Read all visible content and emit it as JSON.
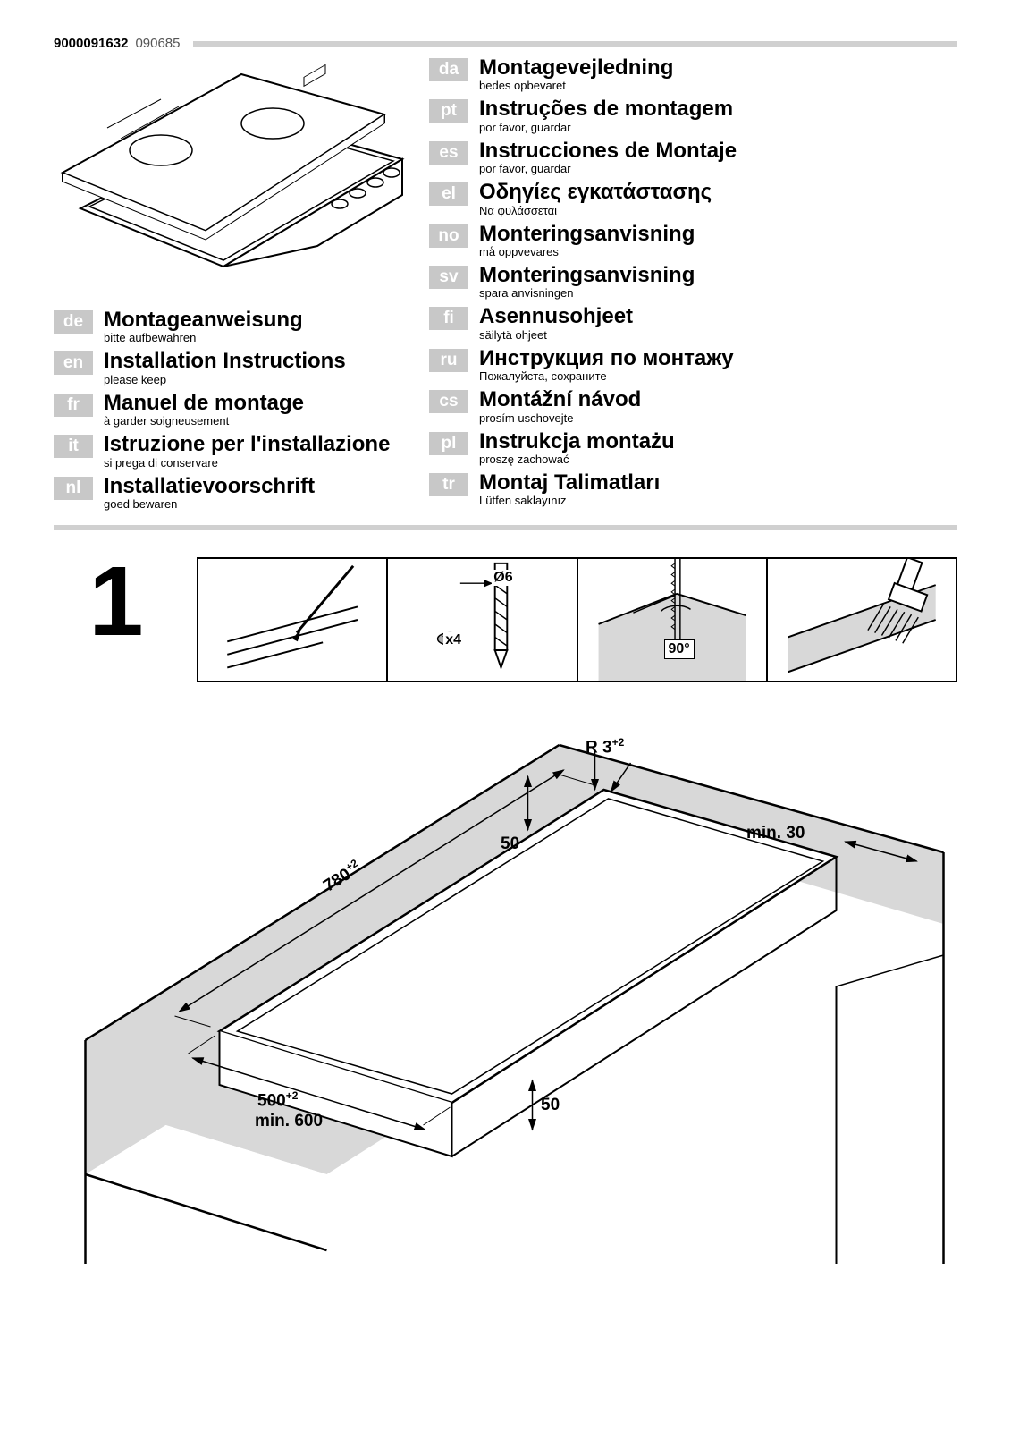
{
  "header": {
    "doc_num_bold": "9000091632",
    "doc_num_light": "090685"
  },
  "languages_left": [
    {
      "code": "de",
      "title": "Montageanweisung",
      "sub": "bitte aufbewahren"
    },
    {
      "code": "en",
      "title": "Installation Instructions",
      "sub": "please keep"
    },
    {
      "code": "fr",
      "title": "Manuel de montage",
      "sub": "à garder soigneusement"
    },
    {
      "code": "it",
      "title": "Istruzione per l'installazione",
      "sub": "si prega di conservare"
    },
    {
      "code": "nl",
      "title": "Installatievoorschrift",
      "sub": "goed bewaren"
    }
  ],
  "languages_right": [
    {
      "code": "da",
      "title": "Montagevejledning",
      "sub": "bedes opbevaret"
    },
    {
      "code": "pt",
      "title": "Instruções de montagem",
      "sub": "por favor, guardar"
    },
    {
      "code": "es",
      "title": "Instrucciones de Montaje",
      "sub": "por favor, guardar"
    },
    {
      "code": "el",
      "title": "Οδηγίες εγκατάστασης",
      "sub": "Να φυλάσσεται"
    },
    {
      "code": "no",
      "title": "Monteringsanvisning",
      "sub": "må oppvevares"
    },
    {
      "code": "sv",
      "title": "Monteringsanvisning",
      "sub": "spara anvisningen"
    },
    {
      "code": "fi",
      "title": "Asennusohjeet",
      "sub": "säilytä ohjeet"
    },
    {
      "code": "ru",
      "title": "Инструкция по монтажу",
      "sub": "Пожалуйста, сохраните"
    },
    {
      "code": "cs",
      "title": "Montážní návod",
      "sub": "prosím uschovejte"
    },
    {
      "code": "pl",
      "title": "Instrukcja montażu",
      "sub": "proszę zachować"
    },
    {
      "code": "tr",
      "title": "Montaj Talimatları",
      "sub": "Lütfen saklayınız"
    }
  ],
  "step1": {
    "number": "1",
    "tools": {
      "screw_count": "x4",
      "drill_diameter": "Ø6",
      "saw_angle": "90°"
    }
  },
  "dimensions": {
    "width": "780",
    "width_tol": "+2",
    "depth": "500",
    "depth_tol": "+2",
    "min_depth": "min. 600",
    "front_gap": "50",
    "side_gap": "50",
    "side_min": "min. 30",
    "corner_radius": "R 3",
    "corner_radius_tol": "+2"
  },
  "colors": {
    "gray_rule": "#d0d0d0",
    "badge_bg": "#c8c8c8",
    "countertop_gray": "#d8d8d8"
  }
}
